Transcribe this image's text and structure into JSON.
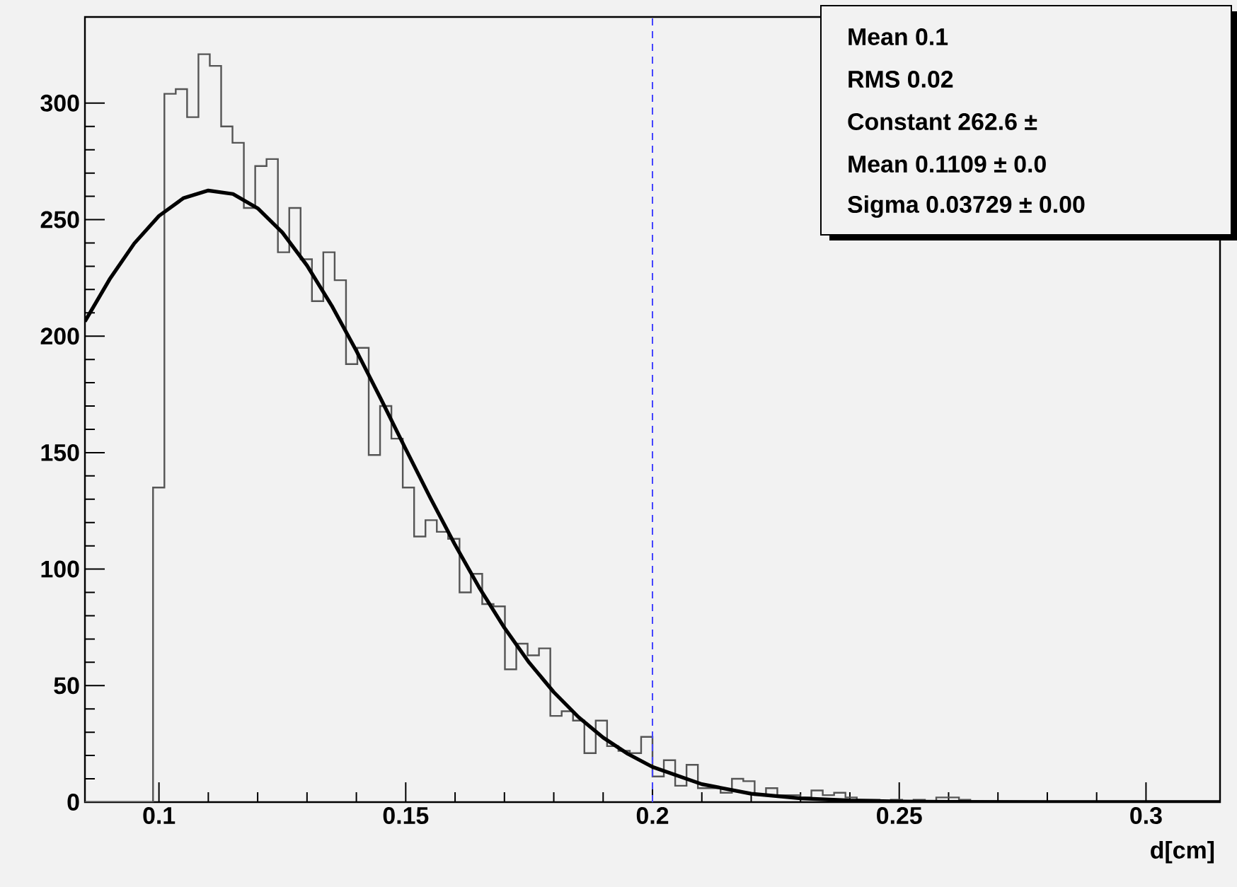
{
  "chart_data": {
    "type": "histogram",
    "xlabel": "d[cm]",
    "bins": [
      0.085,
      0.0873,
      0.0896,
      0.0919,
      0.0942,
      0.0965,
      0.0988,
      0.1011,
      0.1034,
      0.1057,
      0.108,
      0.1103,
      0.1126,
      0.1149,
      0.1172,
      0.1195,
      0.1218,
      0.1241,
      0.1264,
      0.1287,
      0.131,
      0.1333,
      0.1356,
      0.1379,
      0.1402,
      0.1425,
      0.1448,
      0.1471,
      0.1494,
      0.1517,
      0.154,
      0.1563,
      0.1586,
      0.1609,
      0.1632,
      0.1655,
      0.1678,
      0.1701,
      0.1724,
      0.1747,
      0.177,
      0.1793,
      0.1816,
      0.1839,
      0.1862,
      0.1885,
      0.1908,
      0.1931,
      0.1954,
      0.1977,
      0.2,
      0.2023,
      0.2046,
      0.2069,
      0.2092,
      0.2115,
      0.2138,
      0.2161,
      0.2184,
      0.2207,
      0.223,
      0.2253,
      0.2276,
      0.2299,
      0.2322,
      0.2345,
      0.2368,
      0.2391,
      0.2414,
      0.2437,
      0.246,
      0.2483,
      0.2506,
      0.2529,
      0.2552,
      0.2575,
      0.2598,
      0.2621,
      0.2644,
      0.2667,
      0.269,
      0.2713,
      0.2736,
      0.2759,
      0.2782,
      0.2805,
      0.2828,
      0.2851,
      0.2874,
      0.2897,
      0.292,
      0.2943,
      0.2966,
      0.2989,
      0.3012,
      0.3035,
      0.3058,
      0.3081,
      0.3104,
      0.3127,
      0.315
    ],
    "series": [
      {
        "type": "histogram",
        "color": "#555555",
        "values": [
          0,
          0,
          0,
          0,
          0,
          0,
          135,
          304,
          306,
          294,
          321,
          316,
          290,
          283,
          255,
          273,
          276,
          236,
          255,
          233,
          215,
          236,
          224,
          188,
          195,
          149,
          170,
          156,
          135,
          114,
          121,
          116,
          113,
          90,
          98,
          85,
          84,
          57,
          68,
          63,
          66,
          37,
          39,
          35,
          21,
          35,
          24,
          22,
          21,
          28,
          11,
          18,
          7,
          16,
          6,
          6,
          4,
          10,
          9,
          3,
          6,
          3,
          3,
          2,
          5,
          3,
          4,
          2,
          1,
          1,
          0,
          1,
          0,
          1,
          0,
          2,
          2,
          1,
          0,
          0,
          0,
          0,
          0,
          0,
          0,
          0,
          0,
          0,
          0,
          0,
          0,
          0,
          0,
          0,
          0,
          0,
          0,
          0,
          0,
          0
        ]
      },
      {
        "type": "line",
        "color": "#000000",
        "x": [
          0.085,
          0.09,
          0.095,
          0.1,
          0.105,
          0.11,
          0.115,
          0.12,
          0.125,
          0.13,
          0.135,
          0.14,
          0.145,
          0.15,
          0.155,
          0.16,
          0.165,
          0.17,
          0.175,
          0.18,
          0.185,
          0.19,
          0.195,
          0.2,
          0.21,
          0.22,
          0.23,
          0.24,
          0.25,
          0.26,
          0.28,
          0.3,
          0.315
        ],
        "values": [
          206.3,
          224.4,
          239.8,
          251.6,
          259.3,
          262.5,
          261.0,
          254.9,
          244.5,
          230.3,
          213.1,
          193.7,
          172.9,
          151.5,
          130.5,
          110.4,
          91.7,
          74.8,
          59.9,
          47.2,
          36.5,
          27.7,
          20.7,
          15.1,
          7.7,
          3.6,
          1.6,
          0.7,
          0.3,
          0.1,
          0,
          0,
          0
        ]
      }
    ],
    "xlim": [
      0.085,
      0.315
    ],
    "ylim": [
      0,
      337
    ],
    "xticks": [
      0.1,
      0.15,
      0.2,
      0.25,
      0.3
    ],
    "yticks": [
      0,
      50,
      100,
      150,
      200,
      250,
      300
    ],
    "ref_lines": [
      {
        "axis": "x",
        "value": 0.2,
        "color": "#4444ff",
        "line_style": "dashed"
      }
    ],
    "annotations": [
      "Mean 0.1",
      "RMS 0.02",
      "Constant 262.6 ±",
      "Mean 0.1109 ± 0.0",
      "Sigma 0.03729 ± 0.00"
    ]
  }
}
